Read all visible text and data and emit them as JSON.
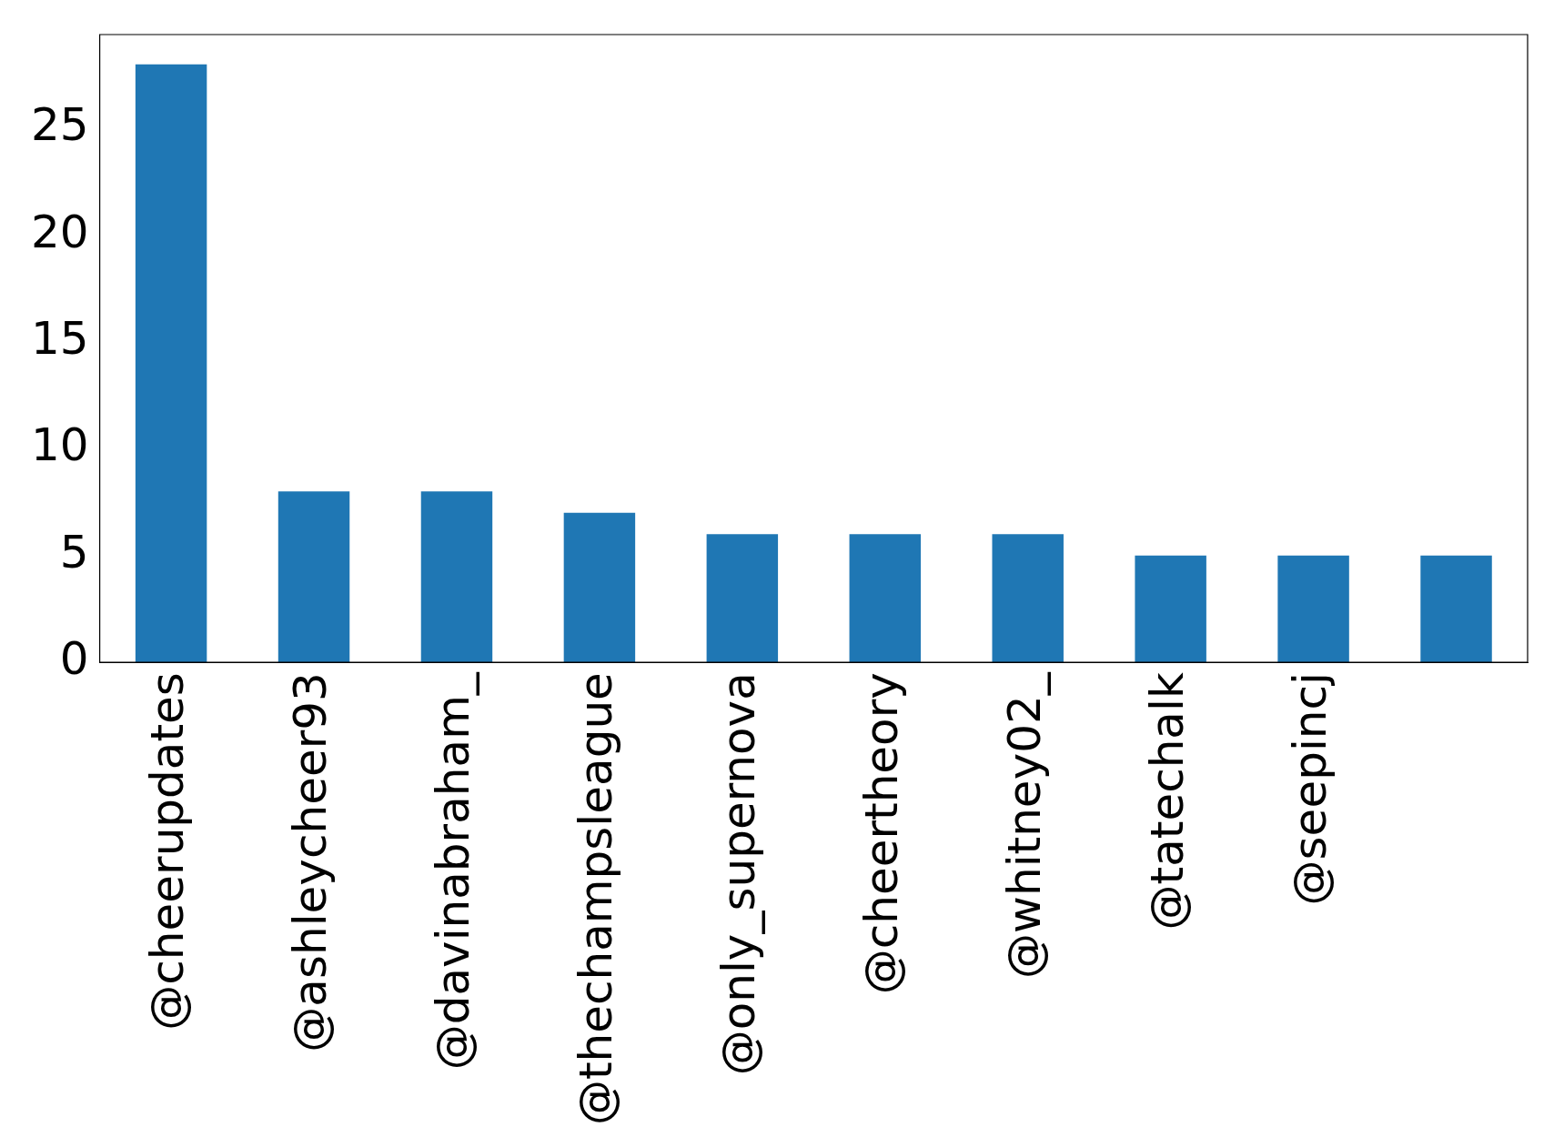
{
  "chart_data": {
    "type": "bar",
    "categories": [
      "@cheerupdates",
      "@ashleycheer93",
      "@davinabraham_",
      "@thechampsleague",
      "@only_supernova",
      "@cheertheory",
      "@whitney02_",
      "@tatechalk",
      "@seepincj",
      null
    ],
    "values": [
      28,
      8,
      8,
      7,
      6,
      6,
      6,
      5,
      5,
      5
    ],
    "color": "#1f77b4",
    "ylim": [
      0,
      29.4
    ],
    "yticks": [
      0,
      5,
      10,
      15,
      20,
      25
    ],
    "grid": false,
    "legend": false
  }
}
